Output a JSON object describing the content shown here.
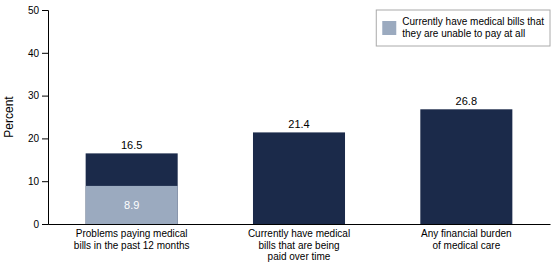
{
  "chart_data": {
    "type": "bar",
    "categories": [
      "Problems paying medical\nbills in the past 12 months",
      "Currently have medical\nbills that are being\npaid over time",
      "Any financial burden\nof medical care"
    ],
    "series": [
      {
        "color": "#1B2A4A",
        "values": [
          16.5,
          21.4,
          26.8
        ]
      },
      {
        "name": "Currently have medical bills that\nthey are unable to pay at all",
        "color": "#9BAABF",
        "values": [
          8.9,
          null,
          null
        ]
      }
    ],
    "ylabel": "Percent",
    "ylim": [
      0,
      50
    ],
    "yticks": [
      0,
      10,
      20,
      30,
      40,
      50
    ],
    "data_labels": true,
    "grid": false,
    "legend": "top-right"
  }
}
